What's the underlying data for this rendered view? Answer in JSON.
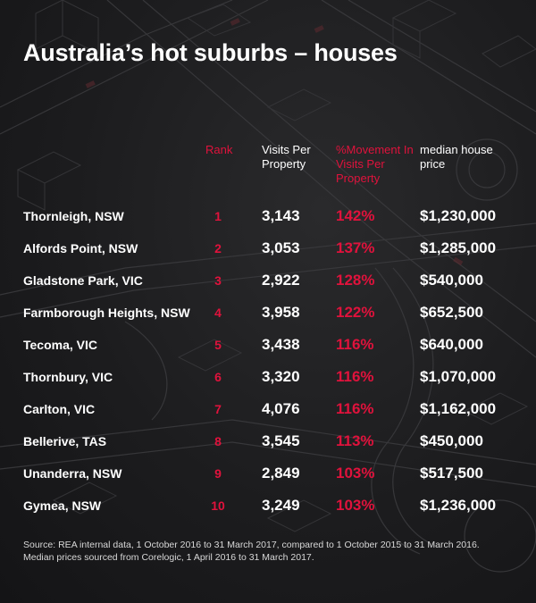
{
  "colors": {
    "background": "#1c1c1e",
    "accent_red": "#e0123c",
    "text": "#ffffff"
  },
  "title": "Australia’s hot suburbs – houses",
  "chart_data": {
    "type": "table",
    "columns": [
      {
        "key": "suburb",
        "label": ""
      },
      {
        "key": "rank",
        "label": "Rank"
      },
      {
        "key": "visits",
        "label": "Visits Per Property"
      },
      {
        "key": "movement",
        "label": "%Movement In Visits Per Property"
      },
      {
        "key": "price",
        "label": "median house price"
      }
    ],
    "rows": [
      {
        "suburb": "Thornleigh, NSW",
        "rank": "1",
        "visits": "3,143",
        "movement": "142%",
        "price": "$1,230,000"
      },
      {
        "suburb": "Alfords Point, NSW",
        "rank": "2",
        "visits": "3,053",
        "movement": "137%",
        "price": "$1,285,000"
      },
      {
        "suburb": "Gladstone Park, VIC",
        "rank": "3",
        "visits": "2,922",
        "movement": "128%",
        "price": "$540,000"
      },
      {
        "suburb": "Farmborough Heights, NSW",
        "rank": "4",
        "visits": "3,958",
        "movement": "122%",
        "price": "$652,500"
      },
      {
        "suburb": "Tecoma, VIC",
        "rank": "5",
        "visits": "3,438",
        "movement": "116%",
        "price": "$640,000"
      },
      {
        "suburb": "Thornbury, VIC",
        "rank": "6",
        "visits": "3,320",
        "movement": "116%",
        "price": "$1,070,000"
      },
      {
        "suburb": "Carlton, VIC",
        "rank": "7",
        "visits": "4,076",
        "movement": "116%",
        "price": "$1,162,000"
      },
      {
        "suburb": "Bellerive, TAS",
        "rank": "8",
        "visits": "3,545",
        "movement": "113%",
        "price": "$450,000"
      },
      {
        "suburb": "Unanderra, NSW",
        "rank": "9",
        "visits": "2,849",
        "movement": "103%",
        "price": "$517,500"
      },
      {
        "suburb": "Gymea, NSW",
        "rank": "10",
        "visits": "3,249",
        "movement": "103%",
        "price": "$1,236,000"
      }
    ]
  },
  "source": {
    "line1": "Source: REA internal data, 1 October 2016 to 31 March 2017, compared to 1 October 2015 to 31 March 2016.",
    "line2": "Median prices sourced from Corelogic, 1 April 2016 to 31 March 2017."
  }
}
